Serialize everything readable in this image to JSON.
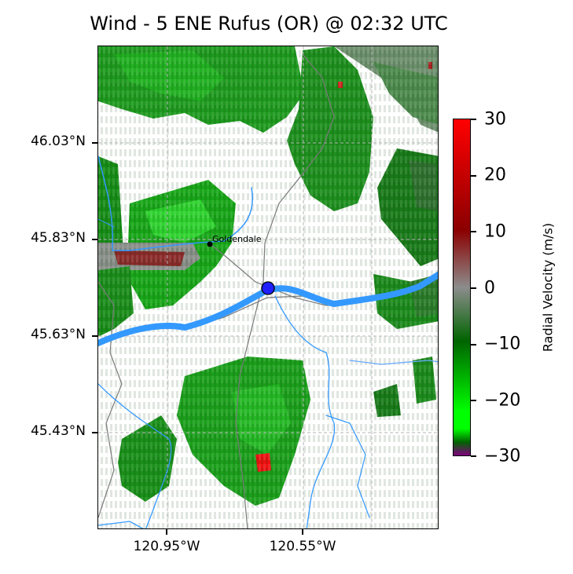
{
  "title": "Wind - 5 ENE Rufus (OR) @ 02:32 UTC",
  "map": {
    "place_label": "Goldendale",
    "radar_site_marker_color": "#1f1fff",
    "river_color": "#3399ff",
    "road_color": "#808080",
    "gridline_style": "dashed",
    "lat_ticks": [
      "46.03°N",
      "45.83°N",
      "45.63°N",
      "45.43°N"
    ],
    "lon_ticks": [
      "120.95°W",
      "120.55°W"
    ]
  },
  "colorbar": {
    "label": "Radial Velocity (m/s)",
    "min": -30,
    "max": 30,
    "ticks": [
      "30",
      "20",
      "10",
      "0",
      "−10",
      "−20",
      "−30"
    ],
    "colors": {
      "top": "#ff0000",
      "upper_mid": "#8b0000",
      "zero": "#8c8c8c",
      "lower_mid": "#006400",
      "strong_negative": "#00ff00",
      "bottom": "#800080"
    }
  }
}
